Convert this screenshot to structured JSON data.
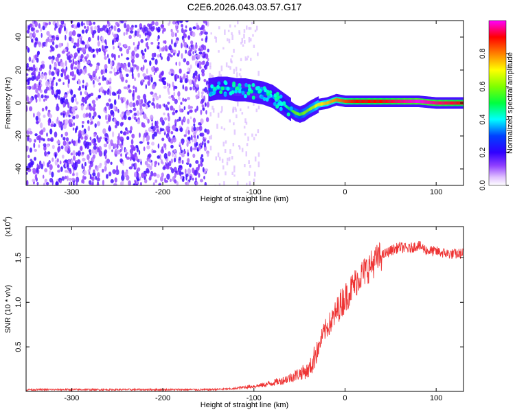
{
  "title": "C2E6.2026.043.03.57.G17",
  "chart_data": [
    {
      "type": "heatmap",
      "title": "C2E6.2026.043.03.57.G17",
      "xlabel": "Height of straight line (km)",
      "ylabel": "Frequency (Hz)",
      "xlim": [
        -350,
        130
      ],
      "ylim": [
        -50,
        50
      ],
      "xticks": [
        -300,
        -200,
        -100,
        0,
        100
      ],
      "yticks": [
        -40,
        -20,
        0,
        20,
        40
      ],
      "colorbar": {
        "label": "Normalized spectral amplitude",
        "range": [
          0,
          1
        ],
        "ticks": [
          "0.0",
          "0.2",
          "0.4",
          "0.6",
          "0.8"
        ],
        "colors": [
          "#ffffff",
          "#c080ff",
          "#8000ff",
          "#0000ff",
          "#00ffff",
          "#00ff00",
          "#ffff00",
          "#ff8000",
          "#ff0000",
          "#ff00ff"
        ]
      },
      "noise_region_km": [
        -350,
        -150
      ],
      "signal_track": {
        "heights_km": [
          -150,
          -140,
          -130,
          -120,
          -110,
          -100,
          -90,
          -80,
          -75,
          -70,
          -65,
          -60,
          -55,
          -50,
          -45,
          -40,
          -30,
          -20,
          -10,
          0,
          10,
          20,
          40,
          60,
          80,
          100,
          130
        ],
        "frequency_hz": [
          8,
          9,
          9,
          8,
          8,
          7,
          6,
          4,
          2,
          0,
          -2,
          -4,
          -6,
          -7,
          -6,
          -4,
          -1,
          0,
          2,
          1,
          1,
          1,
          1,
          1,
          1,
          0,
          0
        ],
        "amplitude": [
          0.3,
          0.35,
          0.35,
          0.3,
          0.3,
          0.3,
          0.3,
          0.35,
          0.35,
          0.4,
          0.45,
          0.5,
          0.6,
          0.55,
          0.6,
          0.6,
          0.7,
          0.75,
          0.8,
          0.85,
          0.9,
          0.9,
          0.9,
          0.95,
          1.0,
          0.95,
          0.9
        ]
      }
    },
    {
      "type": "line",
      "xlabel": "Height of straight line (km)",
      "ylabel": "SNR (10 * v/v)",
      "y_multiplier": "(x10",
      "y_multiplier_exp": "4",
      "y_multiplier_close": ")",
      "xlim": [
        -350,
        130
      ],
      "ylim": [
        0,
        1.85
      ],
      "xticks": [
        -300,
        -200,
        -100,
        0,
        100
      ],
      "yticks": [
        0.5,
        1.0,
        1.5
      ],
      "ytick_labels": [
        "0.5",
        "1.0",
        "1.5"
      ],
      "series": [
        {
          "color": "#ee3333",
          "x": [
            -350,
            -300,
            -250,
            -200,
            -150,
            -120,
            -100,
            -90,
            -80,
            -70,
            -60,
            -50,
            -40,
            -35,
            -30,
            -25,
            -20,
            -15,
            -10,
            -5,
            0,
            5,
            10,
            15,
            20,
            25,
            30,
            35,
            40,
            50,
            60,
            70,
            80,
            90,
            100,
            110,
            120,
            130
          ],
          "y": [
            0.02,
            0.02,
            0.02,
            0.02,
            0.02,
            0.03,
            0.05,
            0.06,
            0.08,
            0.1,
            0.13,
            0.17,
            0.2,
            0.28,
            0.45,
            0.62,
            0.72,
            0.78,
            0.88,
            0.98,
            1.05,
            1.12,
            1.2,
            1.28,
            1.33,
            1.38,
            1.43,
            1.48,
            1.52,
            1.58,
            1.62,
            1.6,
            1.64,
            1.58,
            1.57,
            1.55,
            1.54,
            1.55
          ]
        }
      ]
    }
  ]
}
